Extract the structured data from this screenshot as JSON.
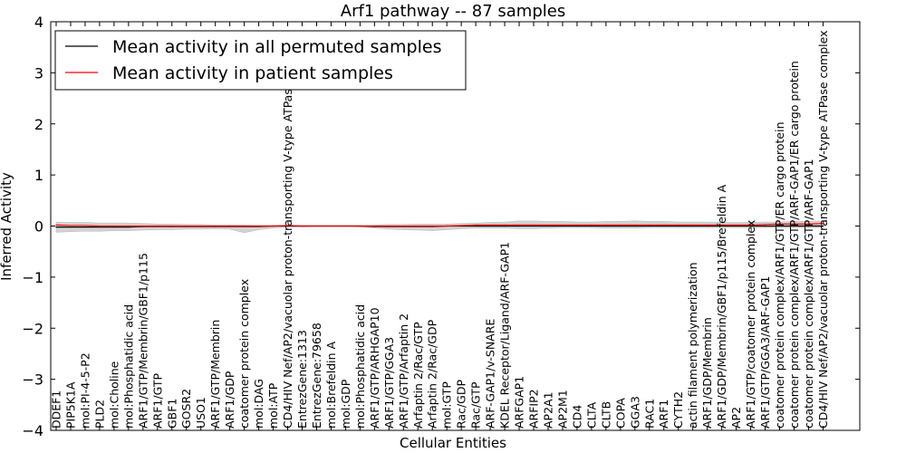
{
  "chart_data": {
    "type": "line",
    "title": "Arf1 pathway -- 87 samples",
    "xlabel": "Cellular Entities",
    "ylabel": "Inferred Activity",
    "ylim": [
      -4,
      4
    ],
    "yticks": [
      -4,
      -3,
      -2,
      -1,
      0,
      1,
      2,
      3,
      4
    ],
    "ytick_labels": [
      "−4",
      "−3",
      "−2",
      "−1",
      "0",
      "1",
      "2",
      "3",
      "4"
    ],
    "grid": false,
    "legend_position": "top-left",
    "categories": [
      "DDEF1",
      "PIP5K1A",
      "mol:PI-4-5-P2",
      "PLD2",
      "mol:Choline",
      "mol:Phosphatidic acid",
      "ARF1/GTP/Membrin/GBF1/p115",
      "ARF1/GTP",
      "GBF1",
      "GOSR2",
      "USO1",
      "ARF1/GTP/Membrin",
      "ARF1/GDP",
      "coatomer protein complex",
      "mol:DAG",
      "mol:ATP",
      "CD4/HIV Nef/AP2/vacuolar proton-transporting V-type ATPase complex",
      "EntrezGene:1313",
      "EntrezGene:79658",
      "mol:Brefeldin A",
      "mol:GDP",
      "mol:Phosphatidic acid",
      "ARF1/GTP/ARHGAP10",
      "ARF1/GTP/GGA3",
      "ARF1/GTP/Arfaptin 2",
      "Arfaptin 2/Rac/GTP",
      "Arfaptin 2/Rac/GDP",
      "mol:GTP",
      "Rac/GDP",
      "Rac/GTP",
      "ARF-GAP1/v-SNARE",
      "KDEL Receptor/Ligand/ARF-GAP1",
      "ARFGAP1",
      "ARFIP2",
      "AP2A1",
      "AP2M1",
      "CD4",
      "CLTA",
      "CLTB",
      "COPA",
      "GGA3",
      "RAC1",
      "ARF1",
      "CYTH2",
      "actin filament polymerization",
      "ARF1/GDP/Membrin",
      "ARF1/GDP/Membrin/GBF1/p115/Brefeldin A",
      "AP2",
      "ARF1/GTP/coatomer protein complex",
      "ARF1/GTP/GGA3/ARF-GAP1",
      "coatomer protein complex/ARF1/GTP/ER cargo protein",
      "coatomer protein complex/ARF1/GTP/ARF-GAP1/ER cargo protein",
      "coatomer protein complex/ARF1/GTP/ARF-GAP1",
      "CD4/HIV Nef/AP2/vacuolar proton-transporting V-type ATPase complex"
    ],
    "series": [
      {
        "name": "Mean activity in all permuted samples",
        "color": "#000000",
        "values": [
          -0.02,
          -0.02,
          -0.02,
          -0.02,
          -0.02,
          -0.02,
          -0.01,
          -0.01,
          -0.01,
          -0.01,
          -0.01,
          -0.01,
          -0.01,
          -0.01,
          -0.01,
          0,
          0,
          0,
          0,
          0,
          0,
          0,
          -0.01,
          -0.01,
          -0.01,
          -0.01,
          -0.01,
          0,
          0,
          0,
          0,
          0,
          0,
          0,
          0,
          0,
          0,
          0,
          0,
          0,
          0,
          0,
          0,
          0,
          0,
          0,
          0,
          0,
          0,
          0,
          0,
          0,
          0,
          0
        ]
      },
      {
        "name": "Mean activity in patient samples",
        "color": "#ff0000",
        "values": [
          0.02,
          0.01,
          0.01,
          0,
          0,
          0,
          0,
          0,
          0,
          0,
          0,
          0,
          0,
          0,
          0,
          0,
          0.01,
          0,
          0,
          0,
          0,
          0,
          0,
          0,
          0,
          0,
          0,
          0,
          0.01,
          0.02,
          0.02,
          0.02,
          0.02,
          0.02,
          0.02,
          0.02,
          0.02,
          0.02,
          0.02,
          0.02,
          0.02,
          0.02,
          0.02,
          0.02,
          0.02,
          0.02,
          0.02,
          0.02,
          0.02,
          0.03,
          0.04,
          0.04,
          0.04,
          0.05
        ]
      }
    ],
    "band": {
      "upper": [
        0.08,
        0.07,
        0.07,
        0.06,
        0.06,
        0.06,
        0.05,
        0.04,
        0.04,
        0.03,
        0.03,
        0.02,
        0.02,
        0.02,
        0.01,
        0.01,
        0.01,
        0.01,
        0.01,
        0.01,
        0.01,
        0.01,
        0.02,
        0.03,
        0.03,
        0.04,
        0.04,
        0.04,
        0.05,
        0.06,
        0.07,
        0.08,
        0.1,
        0.1,
        0.09,
        0.09,
        0.08,
        0.08,
        0.09,
        0.09,
        0.1,
        0.09,
        0.09,
        0.08,
        0.08,
        0.08,
        0.07,
        0.07,
        0.07,
        0.08,
        0.08,
        0.09,
        0.09,
        0.1
      ],
      "lower": [
        -0.12,
        -0.11,
        -0.1,
        -0.1,
        -0.09,
        -0.09,
        -0.08,
        -0.07,
        -0.07,
        -0.06,
        -0.06,
        -0.05,
        -0.06,
        -0.13,
        -0.07,
        -0.04,
        -0.02,
        -0.02,
        -0.01,
        -0.01,
        -0.01,
        -0.02,
        -0.04,
        -0.06,
        -0.07,
        -0.08,
        -0.09,
        -0.07,
        -0.05,
        -0.04,
        -0.04,
        -0.04,
        -0.05,
        -0.05,
        -0.04,
        -0.03,
        -0.03,
        -0.03,
        -0.04,
        -0.04,
        -0.04,
        -0.03,
        -0.03,
        -0.03,
        -0.03,
        -0.03,
        -0.03,
        -0.03,
        -0.03,
        -0.03,
        -0.03,
        -0.03,
        -0.03,
        -0.03
      ],
      "color": "#cccccc"
    }
  }
}
